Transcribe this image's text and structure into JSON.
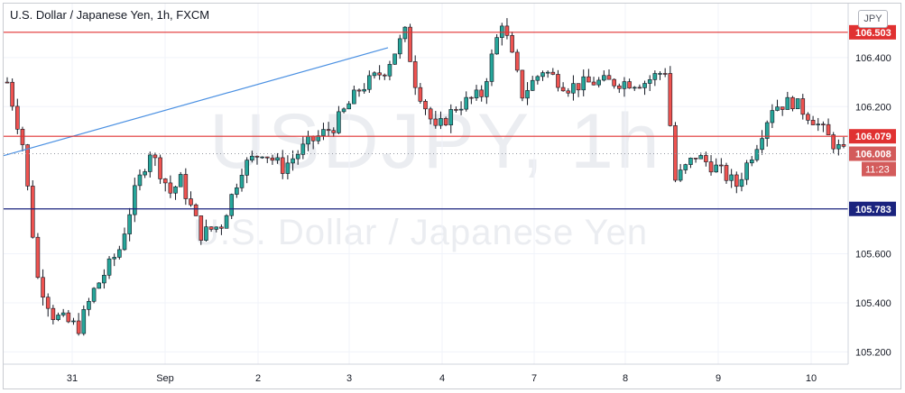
{
  "header": {
    "title": "U.S. Dollar / Japanese Yen, 1h, FXCM",
    "currency": "JPY"
  },
  "watermark": {
    "ticker": "USDJPY, 1h",
    "name": "U.S. Dollar / Japanese Yen"
  },
  "colors": {
    "up": "#26a69a",
    "down": "#ef5350",
    "candle_outline": "#131722",
    "resistance": "#e03131",
    "support": "#1a237e",
    "trendline": "#4a90e2",
    "grid": "#f0f3fa"
  },
  "chart_data": {
    "type": "candlestick",
    "ylim": [
      105.15,
      106.62
    ],
    "y_ticks": [
      "105.200",
      "105.400",
      "105.600",
      "106.200",
      "106.400"
    ],
    "x_tick_labels": [
      "31",
      "Sep",
      "2",
      "3",
      "4",
      "7",
      "8",
      "9",
      "10"
    ],
    "price_lines": [
      {
        "label": "106.503",
        "value": 106.503,
        "kind": "resistance"
      },
      {
        "label": "106.079",
        "value": 106.079,
        "kind": "resistance"
      },
      {
        "label": "105.783",
        "value": 105.783,
        "kind": "support"
      }
    ],
    "current_price": {
      "label": "106.008",
      "value": 106.008,
      "countdown": "11:23"
    },
    "trendline": {
      "from": [
        "Aug 28 close",
        106.0
      ],
      "to": [
        "Sep 3 late",
        106.44
      ]
    },
    "session_path": [
      [
        0,
        106.3
      ],
      [
        3,
        106.05
      ],
      [
        6,
        105.5
      ],
      [
        9,
        105.35
      ],
      [
        14,
        105.3
      ],
      [
        17,
        105.45
      ],
      [
        22,
        105.62
      ],
      [
        25,
        105.85
      ],
      [
        28,
        106.02
      ],
      [
        32,
        105.85
      ],
      [
        34,
        105.9
      ],
      [
        38,
        105.68
      ],
      [
        42,
        105.72
      ],
      [
        46,
        105.95
      ],
      [
        50,
        106.02
      ],
      [
        54,
        105.95
      ],
      [
        59,
        106.05
      ],
      [
        64,
        106.12
      ],
      [
        69,
        106.27
      ],
      [
        74,
        106.35
      ],
      [
        78,
        106.5
      ],
      [
        80,
        106.3
      ],
      [
        84,
        106.1
      ],
      [
        88,
        106.2
      ],
      [
        93,
        106.25
      ],
      [
        97,
        106.55
      ],
      [
        101,
        106.25
      ],
      [
        105,
        106.35
      ],
      [
        110,
        106.28
      ],
      [
        115,
        106.3
      ],
      [
        120,
        106.3
      ],
      [
        125,
        106.3
      ],
      [
        129,
        106.35
      ],
      [
        131,
        105.9
      ],
      [
        135,
        106.0
      ],
      [
        139,
        105.95
      ],
      [
        143,
        105.88
      ],
      [
        147,
        106.05
      ],
      [
        150,
        106.2
      ],
      [
        154,
        106.22
      ],
      [
        158,
        106.15
      ],
      [
        162,
        106.05
      ],
      [
        164,
        106.01
      ]
    ]
  }
}
